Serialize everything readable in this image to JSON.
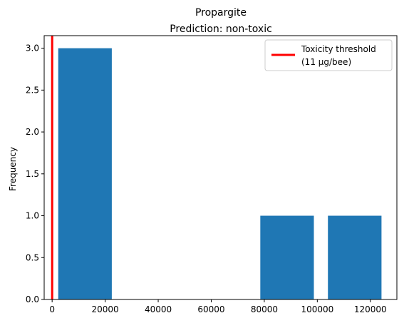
{
  "chart_data": {
    "type": "bar",
    "title": "Propargite",
    "subtitle": "Prediction: non-toxic",
    "xlabel": "",
    "ylabel": "Frequency",
    "xlim": [
      -3000,
      130000
    ],
    "ylim": [
      0,
      3.15
    ],
    "xticks": [
      0,
      20000,
      40000,
      60000,
      80000,
      100000,
      120000
    ],
    "xtick_labels": [
      "0",
      "20000",
      "40000",
      "60000",
      "80000",
      "100000",
      "120000"
    ],
    "yticks": [
      0.0,
      0.5,
      1.0,
      1.5,
      2.0,
      2.5,
      3.0
    ],
    "ytick_labels": [
      "0.0",
      "0.5",
      "1.0",
      "1.5",
      "2.0",
      "2.5",
      "3.0"
    ],
    "bars": [
      {
        "x0": 2300,
        "x1": 22500,
        "value": 3
      },
      {
        "x0": 78500,
        "x1": 98700,
        "value": 1
      },
      {
        "x0": 104000,
        "x1": 124200,
        "value": 1
      }
    ],
    "bar_color": "#1f77b4",
    "threshold": {
      "value": 11,
      "color": "#ff0000"
    },
    "legend": {
      "placement": "top-right",
      "label_line1": "Toxicity threshold",
      "label_line2": "(11 µg/bee)"
    },
    "grid": false
  }
}
